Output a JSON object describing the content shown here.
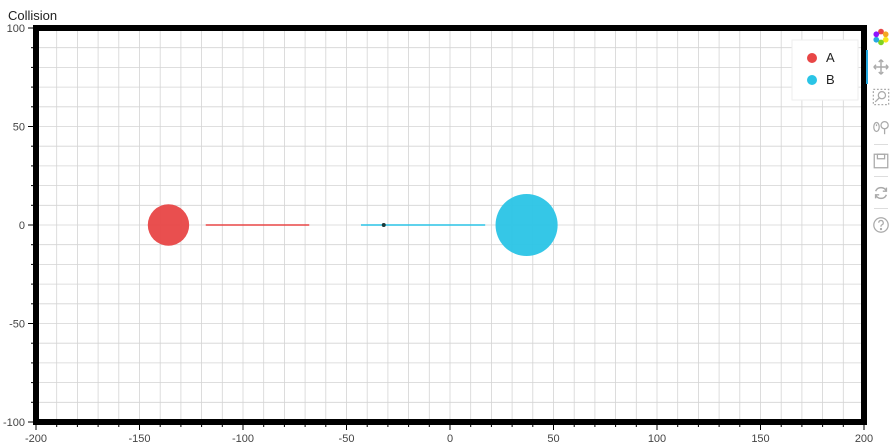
{
  "title": "Collision",
  "chart_data": {
    "type": "scatter",
    "xlim": [
      -200,
      200
    ],
    "ylim": [
      -100,
      100
    ],
    "x_ticks": [
      -200,
      -150,
      -100,
      -50,
      0,
      50,
      100,
      150,
      200
    ],
    "x_tick_labels": [
      "-200",
      "-150",
      "-100",
      "-50",
      "0",
      "50",
      "100",
      "150",
      "200"
    ],
    "y_ticks": [
      -100,
      -50,
      0,
      50,
      100
    ],
    "y_tick_labels": [
      "-100",
      "-50",
      "0",
      "50",
      "100"
    ],
    "grid": true,
    "legend_position": "top-right",
    "series": [
      {
        "name": "A",
        "color": "#e84646",
        "x": -136,
        "y": 0,
        "radius": 10,
        "trail": {
          "x": [
            -118,
            -68
          ],
          "y": [
            0,
            0
          ]
        }
      },
      {
        "name": "B",
        "color": "#2ac4e6",
        "x": 37,
        "y": 0,
        "radius": 15,
        "trail": {
          "x": [
            -43,
            17
          ],
          "y": [
            0,
            0
          ]
        },
        "marker": {
          "x": -32,
          "y": 0
        }
      }
    ]
  },
  "toolbar": {
    "tools": [
      {
        "name": "bokeh-logo",
        "icon": "bokeh-logo-icon"
      },
      {
        "name": "pan",
        "icon": "pan-icon"
      },
      {
        "name": "box-zoom",
        "icon": "box-zoom-icon"
      },
      {
        "name": "wheel-zoom",
        "icon": "wheel-zoom-icon"
      },
      {
        "name": "save",
        "icon": "save-icon"
      },
      {
        "name": "reset",
        "icon": "reset-icon"
      },
      {
        "name": "help",
        "icon": "help-icon"
      }
    ]
  }
}
